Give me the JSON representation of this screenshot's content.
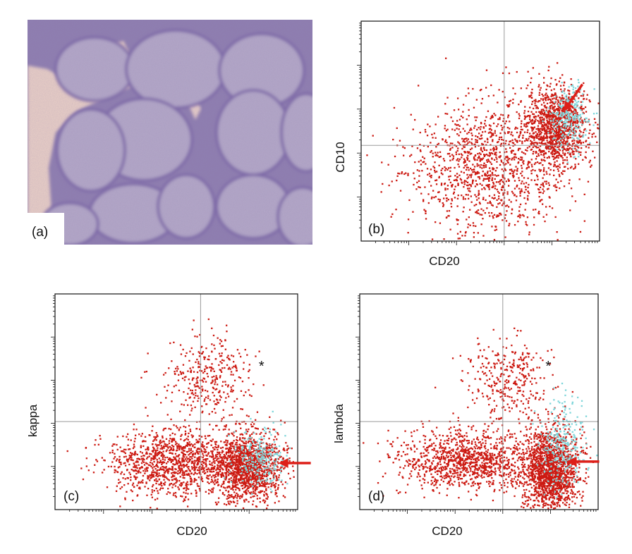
{
  "colors": {
    "event_red": "#cc1a12",
    "event_cyan": "#7fd6da",
    "arrow_red": "#dd1f18",
    "quadrant_line": "#9a9a9a",
    "frame": "#111111",
    "histology_base": "#a394bb"
  },
  "histology": {
    "panel_label": "(a)",
    "description_icon": "micrograph-image"
  },
  "chart_data": [
    {
      "type": "scatter",
      "panel_label": "(b)",
      "xlabel": "CD20",
      "ylabel": "CD10",
      "x_scale": "log",
      "y_scale": "log",
      "xlim": [
        1,
        100000
      ],
      "ylim": [
        1,
        100000
      ],
      "quadrant_gate": {
        "x": 1000,
        "y": 150
      },
      "annotations": [
        {
          "type": "arrow",
          "target": {
            "x": 18000,
            "y": 900
          },
          "direction": "from-upper-right"
        }
      ],
      "series": [
        {
          "color": "red",
          "populations": [
            {
              "x_center": 13000,
              "y_center": 420,
              "x_spread": 0.32,
              "y_spread": 0.45,
              "count": 1150
            },
            {
              "x_center": 500,
              "y_center": 50,
              "x_spread": 0.85,
              "y_spread": 0.75,
              "count": 1250
            }
          ]
        },
        {
          "color": "cyan",
          "populations": [
            {
              "x_center": 22000,
              "y_center": 600,
              "x_spread": 0.22,
              "y_spread": 0.38,
              "count": 230
            }
          ]
        }
      ]
    },
    {
      "type": "scatter",
      "panel_label": "(c)",
      "xlabel": "CD20",
      "ylabel": "kappa",
      "x_scale": "log",
      "y_scale": "log",
      "xlim": [
        1,
        100000
      ],
      "ylim": [
        1,
        100000
      ],
      "quadrant_gate": {
        "x": 1000,
        "y": 110
      },
      "annotations": [
        {
          "type": "arrow",
          "target": {
            "x": 40000,
            "y": 12
          },
          "direction": "from-right"
        },
        {
          "type": "text",
          "text": "*",
          "x": 18000,
          "y": 2600
        }
      ],
      "series": [
        {
          "color": "red",
          "populations": [
            {
              "x_center": 9000,
              "y_center": 10,
              "x_spread": 0.35,
              "y_spread": 0.4,
              "count": 1400
            },
            {
              "x_center": 250,
              "y_center": 12,
              "x_spread": 0.7,
              "y_spread": 0.38,
              "count": 1150
            },
            {
              "x_center": 1500,
              "y_center": 1200,
              "x_spread": 0.45,
              "y_spread": 0.45,
              "count": 330
            }
          ]
        },
        {
          "color": "cyan",
          "populations": [
            {
              "x_center": 18000,
              "y_center": 15,
              "x_spread": 0.25,
              "y_spread": 0.35,
              "count": 230
            }
          ]
        }
      ]
    },
    {
      "type": "scatter",
      "panel_label": "(d)",
      "xlabel": "CD20",
      "ylabel": "lambda",
      "x_scale": "log",
      "y_scale": "log",
      "xlim": [
        1,
        100000
      ],
      "ylim": [
        1,
        100000
      ],
      "quadrant_gate": {
        "x": 1000,
        "y": 110
      },
      "annotations": [
        {
          "type": "arrow",
          "target": {
            "x": 22000,
            "y": 13
          },
          "direction": "from-right"
        },
        {
          "type": "text",
          "text": "*",
          "x": 9000,
          "y": 2600
        }
      ],
      "series": [
        {
          "color": "red",
          "populations": [
            {
              "x_center": 10000,
              "y_center": 8,
              "x_spread": 0.28,
              "y_spread": 0.5,
              "count": 1650
            },
            {
              "x_center": 200,
              "y_center": 14,
              "x_spread": 0.7,
              "y_spread": 0.35,
              "count": 1150
            },
            {
              "x_center": 1200,
              "y_center": 1100,
              "x_spread": 0.45,
              "y_spread": 0.48,
              "count": 320
            }
          ]
        },
        {
          "color": "cyan",
          "populations": [
            {
              "x_center": 18000,
              "y_center": 30,
              "x_spread": 0.22,
              "y_spread": 0.5,
              "count": 260
            }
          ]
        }
      ]
    }
  ]
}
